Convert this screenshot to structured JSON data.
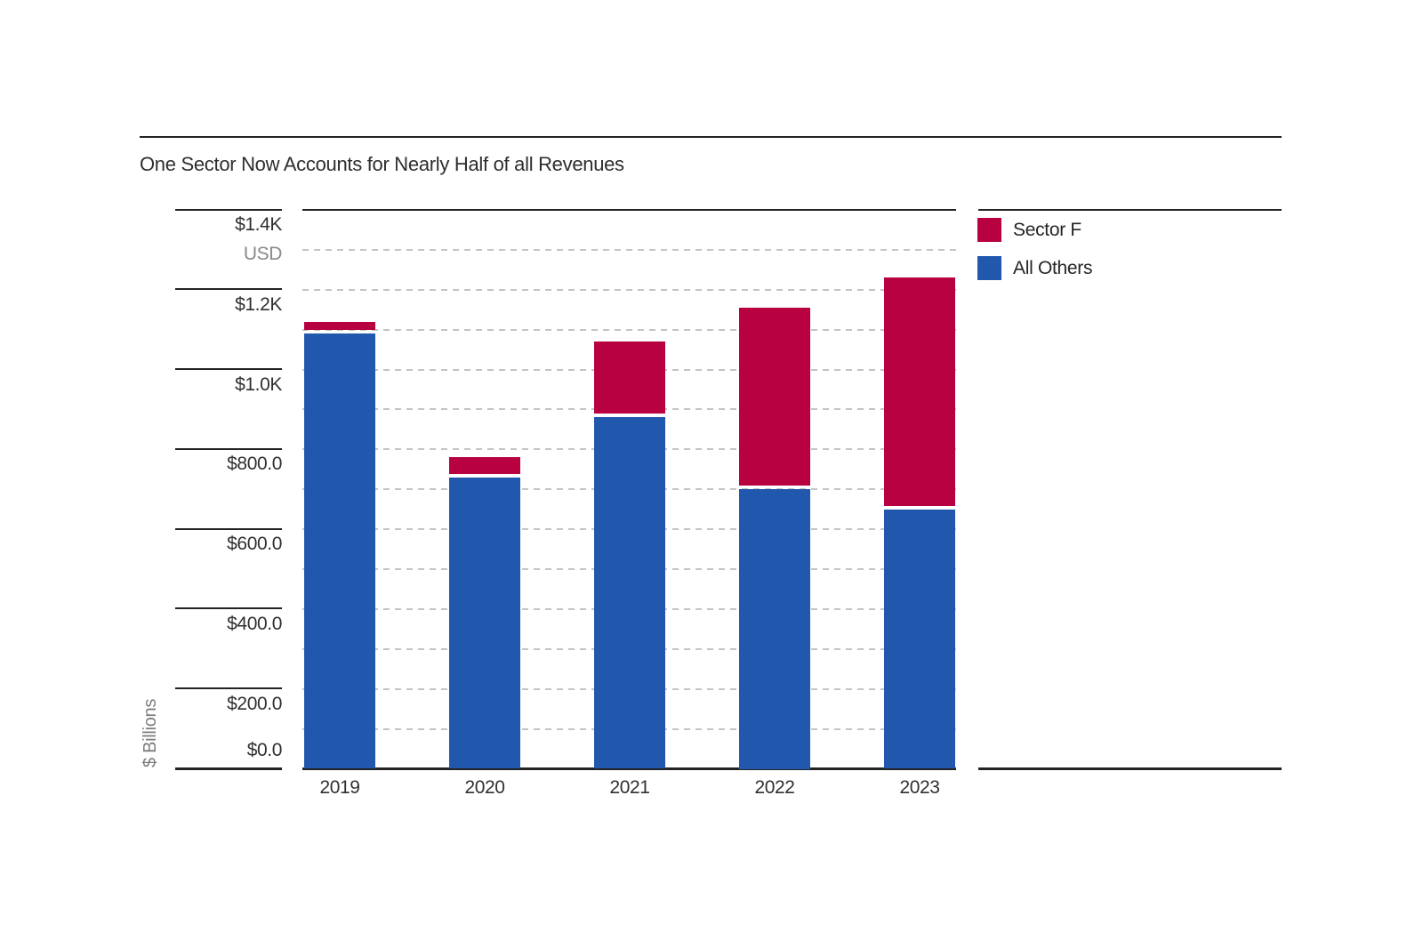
{
  "page": {
    "title": "One Sector Now Accounts for Nearly Half of all Revenues"
  },
  "chart_data": {
    "type": "bar",
    "stacked": true,
    "title": "One Sector Now Accounts for Nearly Half of all Revenues",
    "categories": [
      "2019",
      "2020",
      "2021",
      "2022",
      "2023"
    ],
    "series": [
      {
        "name": "All Others",
        "color": "#2157AD",
        "values": [
          1090,
          730,
          880,
          700,
          650
        ]
      },
      {
        "name": "Sector F",
        "color": "#B70140",
        "values": [
          30,
          50,
          190,
          455,
          580
        ]
      }
    ],
    "legend": [
      {
        "label": "Sector F",
        "color": "#B70140"
      },
      {
        "label": "All Others",
        "color": "#2157AD"
      }
    ],
    "legend_position": "top-right",
    "ylabel": "$ Billions",
    "currency_note": "USD",
    "ylim": [
      0,
      1400
    ],
    "ytick_step": 200,
    "ytick_labels": [
      "$0.0",
      "$200.0",
      "$400.0",
      "$600.0",
      "$800.0",
      "$1.0K",
      "$1.2K",
      "$1.4K"
    ],
    "minor_grid_step": 100,
    "grid": "dashed-horizontal"
  },
  "colors": {
    "axis": "#232323",
    "gridline": "#c4c4c4",
    "muted_text": "#8a8a8a"
  }
}
